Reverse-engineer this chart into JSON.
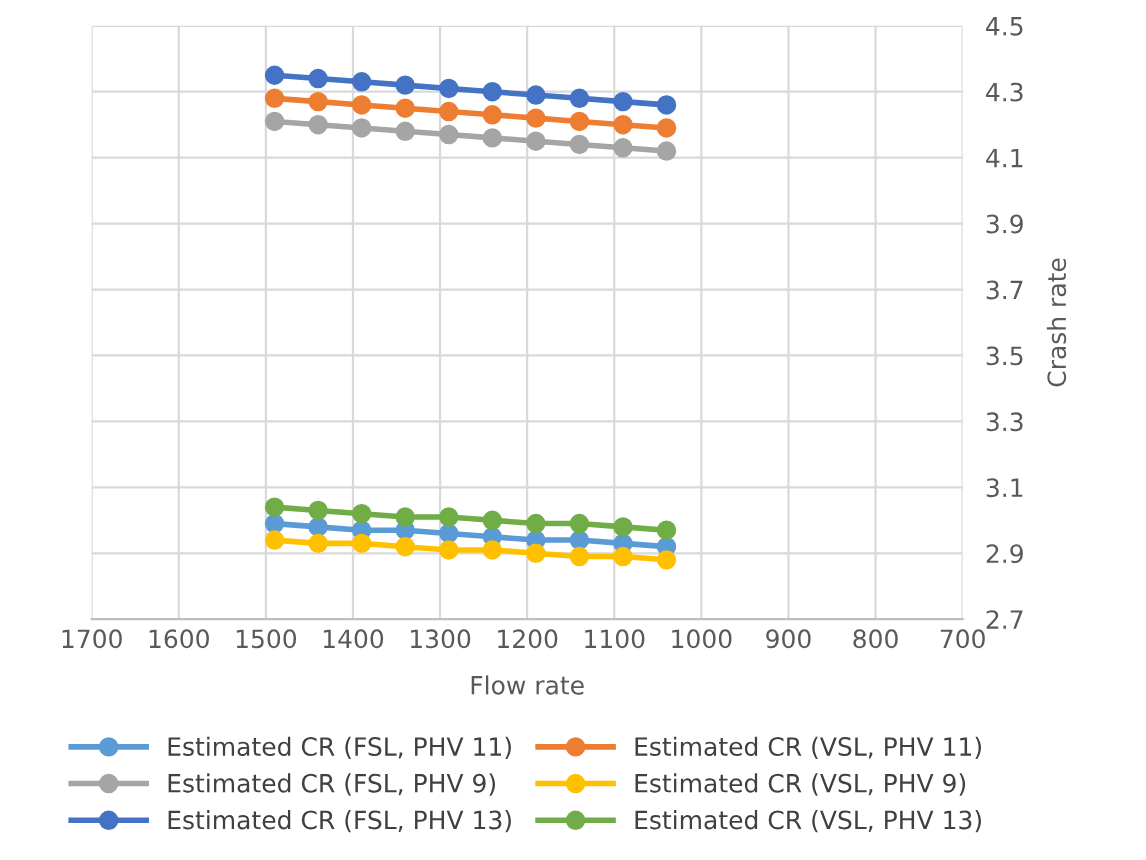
{
  "chart_data": {
    "type": "line",
    "xlabel": "Flow rate",
    "ylabel": "Crash rate",
    "xlim": [
      1700,
      700
    ],
    "xticks": [
      1700,
      1600,
      1500,
      1400,
      1300,
      1200,
      1100,
      1000,
      900,
      800,
      700
    ],
    "ylim": [
      2.7,
      4.5
    ],
    "yticks": [
      2.7,
      2.9,
      3.1,
      3.3,
      3.5,
      3.7,
      3.9,
      4.1,
      4.3,
      4.5
    ],
    "grid": true,
    "legend": "bottom",
    "marker": "circle",
    "line_style": "solid",
    "x": [
      1490,
      1440,
      1390,
      1340,
      1290,
      1240,
      1190,
      1140,
      1090,
      1040
    ],
    "series": [
      {
        "name": "Estimated CR (FSL, PHV 11)",
        "color": "#5b9bd5",
        "values": [
          2.99,
          2.98,
          2.97,
          2.97,
          2.96,
          2.95,
          2.94,
          2.94,
          2.93,
          2.92
        ]
      },
      {
        "name": "Estimated CR (VSL, PHV 11)",
        "color": "#ed7d31",
        "values": [
          4.28,
          4.27,
          4.26,
          4.25,
          4.24,
          4.23,
          4.22,
          4.21,
          4.2,
          4.19
        ]
      },
      {
        "name": "Estimated CR (FSL, PHV 9)",
        "color": "#a5a5a5",
        "values": [
          4.21,
          4.2,
          4.19,
          4.18,
          4.17,
          4.16,
          4.15,
          4.14,
          4.13,
          4.12
        ]
      },
      {
        "name": "Estimated CR (VSL, PHV 9)",
        "color": "#ffc000",
        "values": [
          2.94,
          2.93,
          2.93,
          2.92,
          2.91,
          2.91,
          2.9,
          2.89,
          2.89,
          2.88
        ]
      },
      {
        "name": "Estimated CR (FSL, PHV 13)",
        "color": "#4472c4",
        "values": [
          4.35,
          4.34,
          4.33,
          4.32,
          4.31,
          4.3,
          4.29,
          4.28,
          4.27,
          4.26
        ]
      },
      {
        "name": "Estimated CR (VSL, PHV 13)",
        "color": "#70ad47",
        "values": [
          3.04,
          3.03,
          3.02,
          3.01,
          3.01,
          3.0,
          2.99,
          2.99,
          2.98,
          2.97
        ]
      }
    ]
  }
}
